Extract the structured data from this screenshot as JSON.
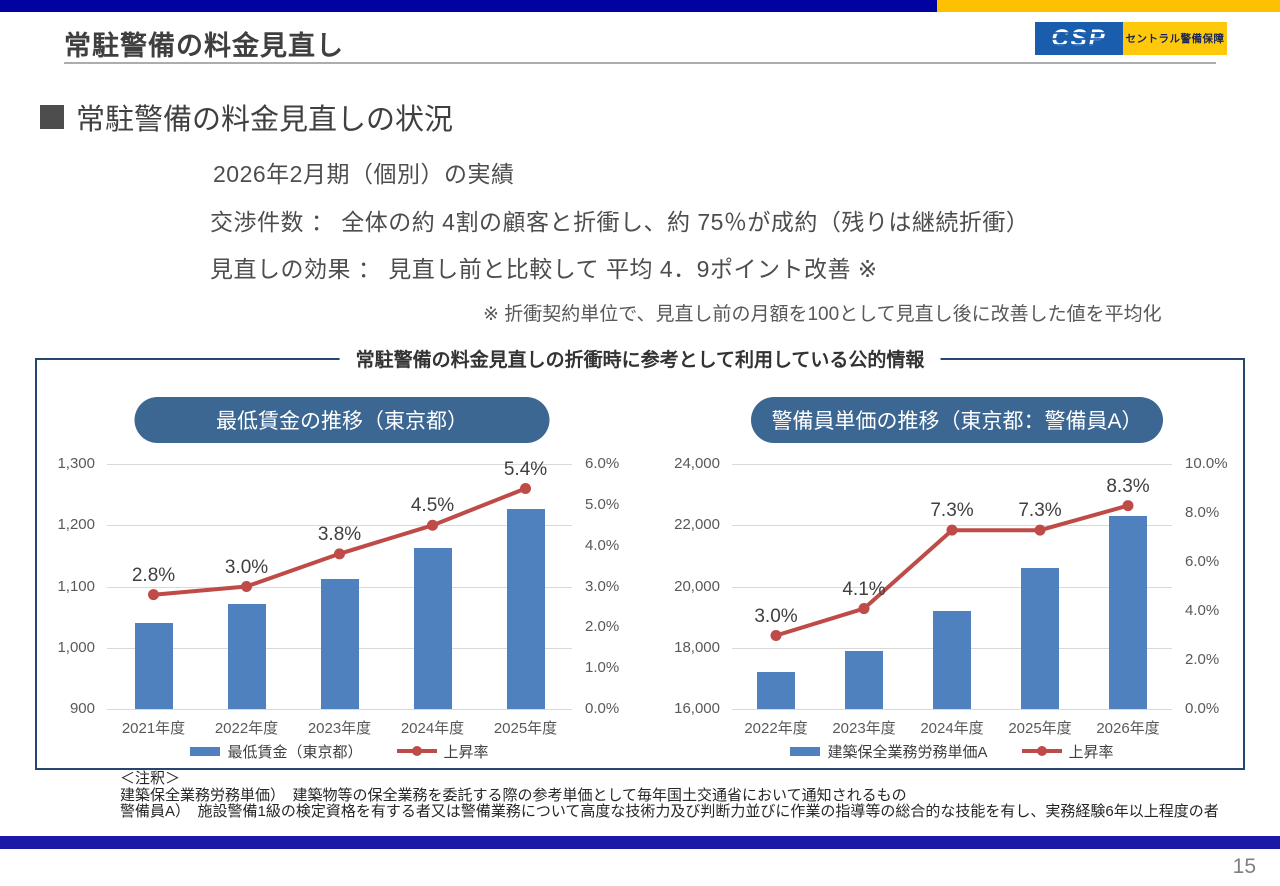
{
  "header": {
    "title": "常駐警備の料金見直し",
    "logo": {
      "abbr": "CSP",
      "company": "セントラル警備保障"
    }
  },
  "section": {
    "bullet": "■",
    "heading": "常駐警備の料金見直しの状況"
  },
  "body": {
    "line1": "2026年2月期（個別）の実績",
    "line2": "交渉件数 ： 全体の約 4割の顧客と折衝し、約 75％が成約（残りは継続折衝）",
    "line3": "見直しの効果 ： 見直し前と比較して 平均 4．9ポイント改善 ※",
    "note": "※ 折衝契約単位で、見直し前の月額を100として見直し後に改善した値を平均化"
  },
  "chart_box_title": "常駐警備の料金見直しの折衝時に参考として利用している公的情報",
  "chart_data": [
    {
      "type": "bar+line",
      "title": "最低賃金の推移（東京都）",
      "categories": [
        "2021年度",
        "2022年度",
        "2023年度",
        "2024年度",
        "2025年度"
      ],
      "bar_series": {
        "name": "最低賃金（東京都）",
        "axis": "left",
        "values": [
          1041,
          1072,
          1113,
          1163,
          1226
        ]
      },
      "line_series": {
        "name": "上昇率",
        "axis": "right",
        "values": [
          2.8,
          3.0,
          3.8,
          4.5,
          5.4
        ],
        "labels": [
          "2.8%",
          "3.0%",
          "3.8%",
          "4.5%",
          "5.4%"
        ]
      },
      "left_axis": {
        "min": 900,
        "max": 1300,
        "ticks_top_to_bottom": [
          "1,300",
          "1,200",
          "1,100",
          "1,000",
          "900"
        ]
      },
      "right_axis": {
        "min": 0,
        "max": 6,
        "ticks_top_to_bottom": [
          "6.0%",
          "5.0%",
          "4.0%",
          "3.0%",
          "2.0%",
          "1.0%",
          "0.0%"
        ]
      },
      "grid": true,
      "legend_position": "bottom"
    },
    {
      "type": "bar+line",
      "title": "警備員単価の推移（東京都：警備員A）",
      "categories": [
        "2022年度",
        "2023年度",
        "2024年度",
        "2025年度",
        "2026年度"
      ],
      "bar_series": {
        "name": "建築保全業務労務単価A",
        "axis": "left",
        "values": [
          17200,
          17900,
          19200,
          20600,
          22300
        ]
      },
      "line_series": {
        "name": "上昇率",
        "axis": "right",
        "values": [
          3.0,
          4.1,
          7.3,
          7.3,
          8.3
        ],
        "labels": [
          "3.0%",
          "4.1%",
          "7.3%",
          "7.3%",
          "8.3%"
        ]
      },
      "left_axis": {
        "min": 16000,
        "max": 24000,
        "ticks_top_to_bottom": [
          "24,000",
          "22,000",
          "20,000",
          "18,000",
          "16,000"
        ]
      },
      "right_axis": {
        "min": 0,
        "max": 10,
        "ticks_top_to_bottom": [
          "10.0%",
          "8.0%",
          "6.0%",
          "4.0%",
          "2.0%",
          "0.0%"
        ]
      },
      "grid": true,
      "legend_position": "bottom"
    }
  ],
  "footnotes": {
    "lines": [
      "＜注釈＞",
      "建築保全業務労務単価）　建築物等の保全業務を委託する際の参考単価として毎年国土交通省において通知されるもの",
      "警備員A）　施設警備1級の検定資格を有する者又は警備業務について高度な技術力及び判断力並びに作業の指導等の総合的な技能を有し、実務経験6年以上程度の者"
    ]
  },
  "page_number": "15",
  "colors": {
    "top_bar_navy": "#0202A0",
    "top_bar_yellow": "#FFC000",
    "bar_blue": "#4E81BD",
    "line_red": "#BE4B48",
    "pill_blue": "#3C6792",
    "box_border": "#24476F",
    "grid_gray": "#D9D9D9",
    "logo_blue": "#1A5DAD",
    "logo_yellow": "#FFC90B"
  }
}
